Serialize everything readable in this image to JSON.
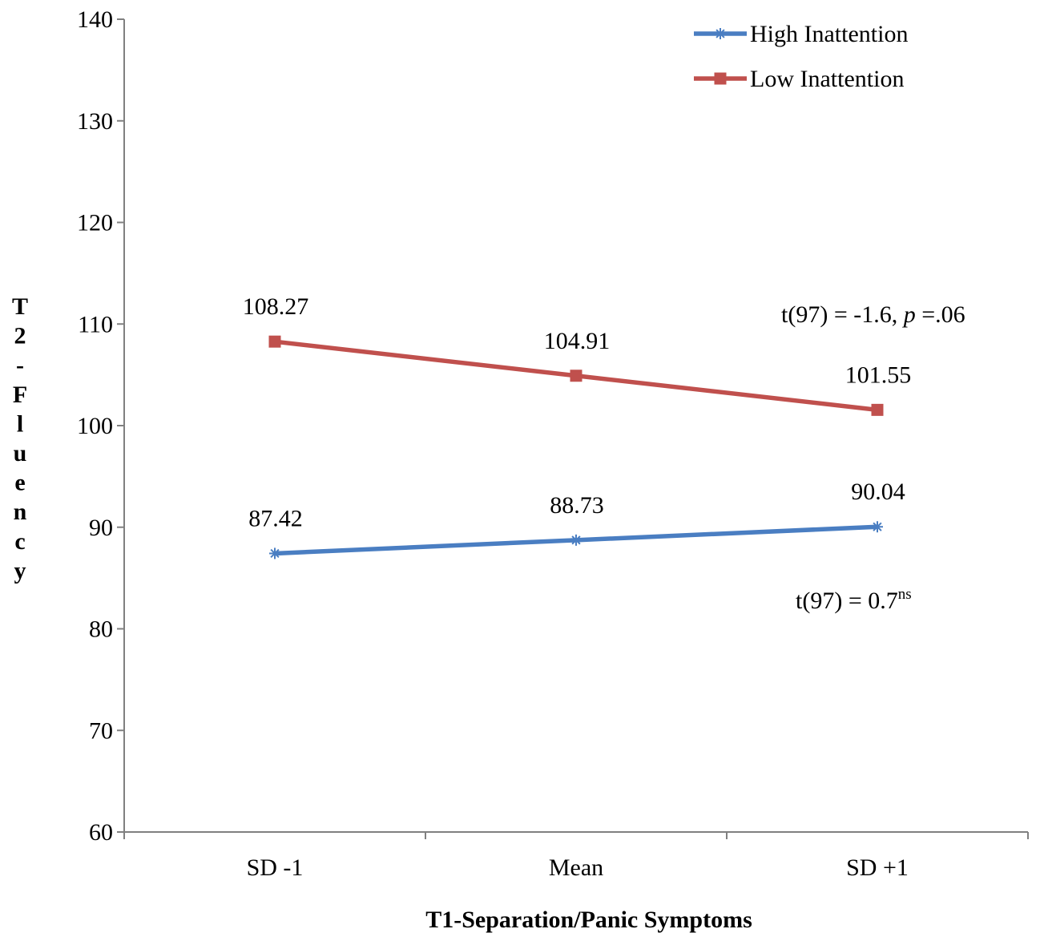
{
  "chart_data": {
    "type": "line",
    "title": "",
    "xlabel": "T1-Separation/Panic Symptoms",
    "ylabel": "T2-Fluency",
    "categories": [
      "SD -1",
      "Mean",
      "SD +1"
    ],
    "ylim": [
      60,
      140
    ],
    "yticks": [
      60,
      70,
      80,
      90,
      100,
      110,
      120,
      130,
      140
    ],
    "grid": false,
    "legend_position": "top-right",
    "series": [
      {
        "name": "High Inattention",
        "color": "#4a7ec2",
        "marker": "asterisk",
        "values": [
          87.42,
          88.73,
          90.04
        ],
        "labels": [
          "87.42",
          "88.73",
          "90.04"
        ]
      },
      {
        "name": "Low Inattention",
        "color": "#c0504d",
        "marker": "square",
        "values": [
          108.27,
          104.91,
          101.55
        ],
        "labels": [
          "108.27",
          "104.91",
          "101.55"
        ]
      }
    ],
    "annotations": {
      "low": {
        "prefix": "t(97) = -1.6, ",
        "italic": "p",
        "suffix": " =.06"
      },
      "high": {
        "main": "t(97) = 0.7",
        "sup": "ns"
      }
    }
  }
}
